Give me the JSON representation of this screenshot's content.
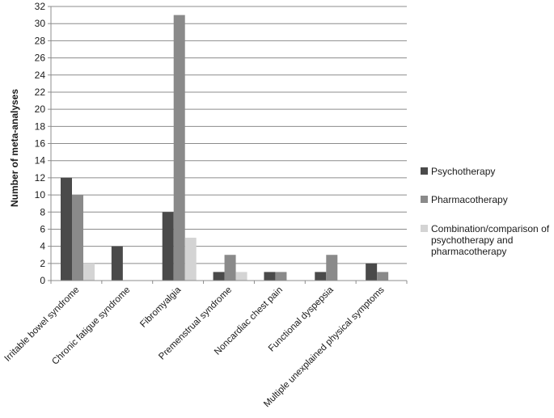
{
  "chart_data": {
    "type": "bar",
    "title": "",
    "xlabel": "",
    "ylabel": "Number of meta-analyses",
    "ylim": [
      0,
      32
    ],
    "ytick_step": 2,
    "grid": true,
    "legend_position": "right",
    "categories": [
      "Irritable bowel syndrome",
      "Chronic fatigue syndrome",
      "Fibromyalgia",
      "Premenstrual syndrome",
      "Noncardiac chest pain",
      "Functional dyspepsia",
      "Multiple unexplained physical symptoms"
    ],
    "series": [
      {
        "name": "Psychotherapy",
        "color": "#4a4a4a",
        "values": [
          12,
          4,
          8,
          1,
          1,
          1,
          2
        ]
      },
      {
        "name": "Pharmacotherapy",
        "color": "#8a8a8a",
        "values": [
          10,
          0,
          31,
          3,
          1,
          3,
          1
        ]
      },
      {
        "name": "Combination/comparison of psychotherapy and pharmacotherapy",
        "legend_lines": [
          "Combination/comparison of",
          "psychotherapy and",
          "pharmacotherapy"
        ],
        "color": "#d4d4d4",
        "values": [
          2,
          0,
          5,
          1,
          0,
          0,
          0
        ]
      }
    ]
  }
}
